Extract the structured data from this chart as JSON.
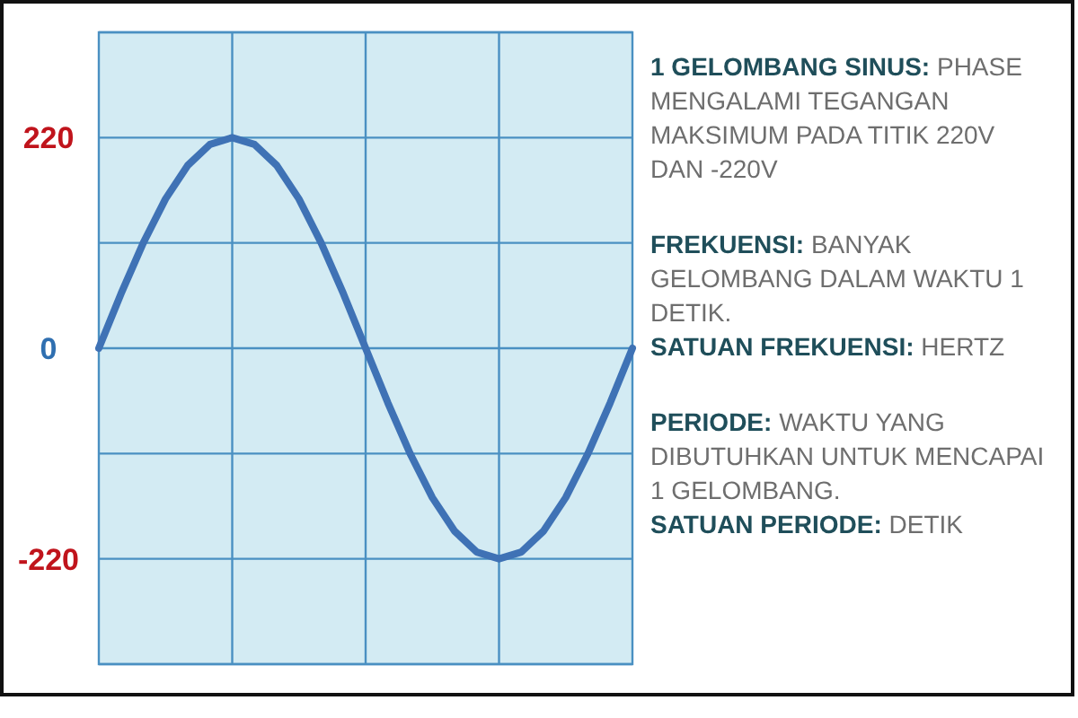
{
  "chart_data": {
    "type": "line",
    "categories": [
      null,
      null,
      null,
      null,
      null,
      null,
      null,
      null,
      null,
      null,
      null,
      null,
      null,
      null,
      null,
      null,
      null,
      null,
      null,
      null,
      null,
      null,
      null,
      null,
      null
    ],
    "series": [
      {
        "color": "#3f72b5",
        "values": [
          0,
          57,
          110,
          156,
          191,
          213,
          220,
          213,
          191,
          156,
          110,
          57,
          0,
          -57,
          -110,
          -156,
          -191,
          -213,
          -220,
          -213,
          -191,
          -156,
          -110,
          -57,
          0
        ]
      }
    ],
    "ylim": [
      -330,
      330
    ],
    "yticks": [
      {
        "value": 330,
        "label": null
      },
      {
        "value": 220,
        "label": "220"
      },
      {
        "value": 110,
        "label": null
      },
      {
        "value": 0,
        "label": "0"
      },
      {
        "value": -110,
        "label": null
      },
      {
        "value": -220,
        "label": "-220"
      },
      {
        "value": -330,
        "label": null
      }
    ],
    "grid": true,
    "tick_labels": "y",
    "marker": "none",
    "line_style": "solid",
    "annotations": [
      "1 GELOMBANG SINUS: PHASE MENGALAMI TEGANGAN MAKSIMUM PADA TITIK 220V DAN -220V",
      "FREKUENSI: BANYAK GELOMBANG DALAM WAKTU 1 DETIK.",
      "SATUAN FREKUENSI: HERTZ",
      "PERIODE: WAKTU YANG DIBUTUHKAN UNTUK MENCAPAI 1 GELOMBANG.",
      "SATUAN PERIODE: DETIK"
    ]
  }
}
